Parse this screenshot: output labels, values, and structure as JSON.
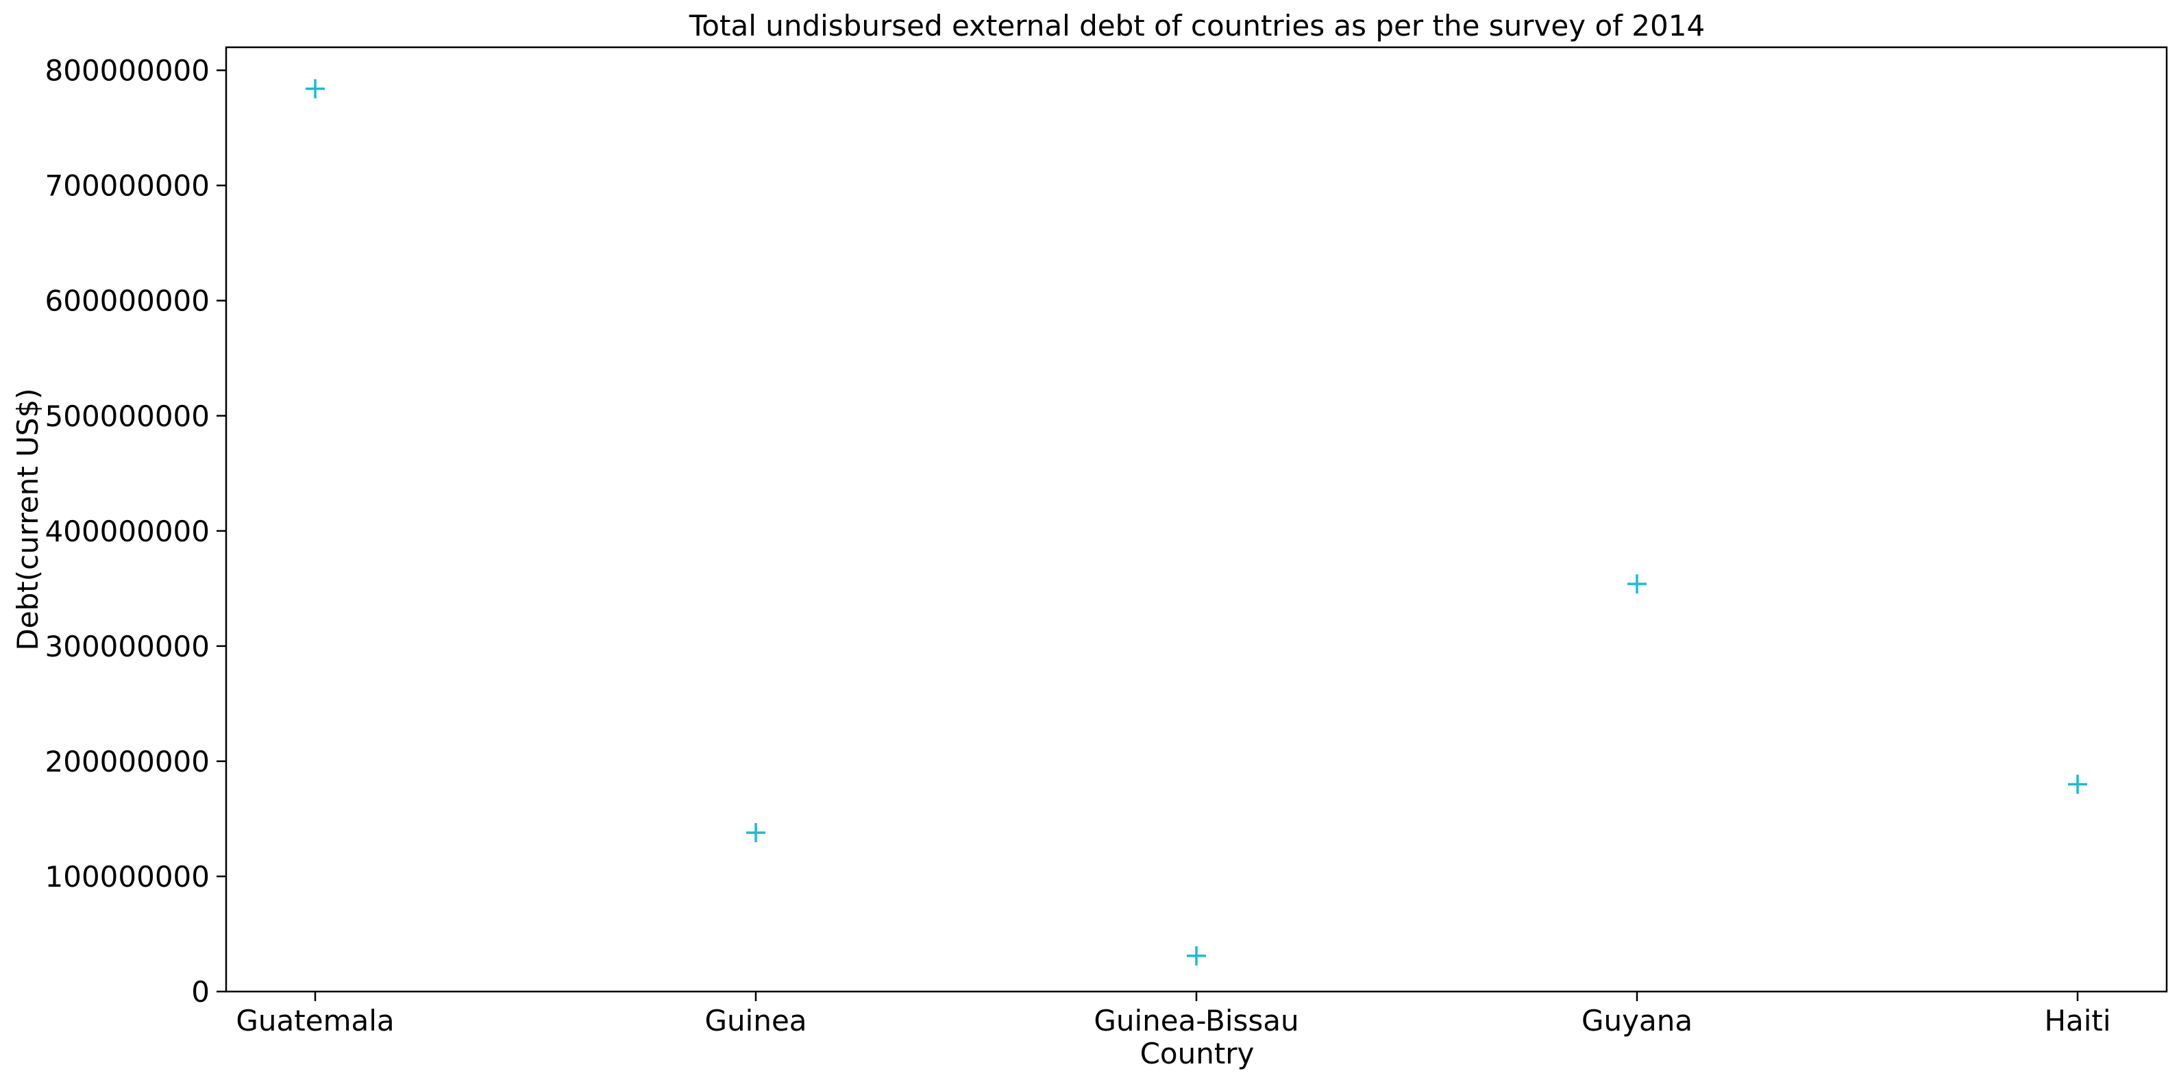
{
  "chart_data": {
    "type": "scatter",
    "title": "Total undisbursed external debt of countries as per the survey of 2014",
    "xlabel": "Country",
    "ylabel": "Debt(current US$)",
    "categories": [
      "Guatemala",
      "Guinea",
      "Guinea-Bissau",
      "Guyana",
      "Haiti"
    ],
    "series": [
      {
        "values": [
          784000000,
          138000000,
          31000000,
          354000000,
          180000000
        ],
        "color": "#17becf",
        "marker": "plus"
      }
    ],
    "ylim": [
      0,
      820000000
    ],
    "yticks": [
      0,
      100000000,
      200000000,
      300000000,
      400000000,
      500000000,
      600000000,
      700000000,
      800000000
    ],
    "ytick_labels": [
      "0",
      "100000000",
      "200000000",
      "300000000",
      "400000000",
      "500000000",
      "600000000",
      "700000000",
      "800000000"
    ],
    "grid": false,
    "legend": "none"
  }
}
